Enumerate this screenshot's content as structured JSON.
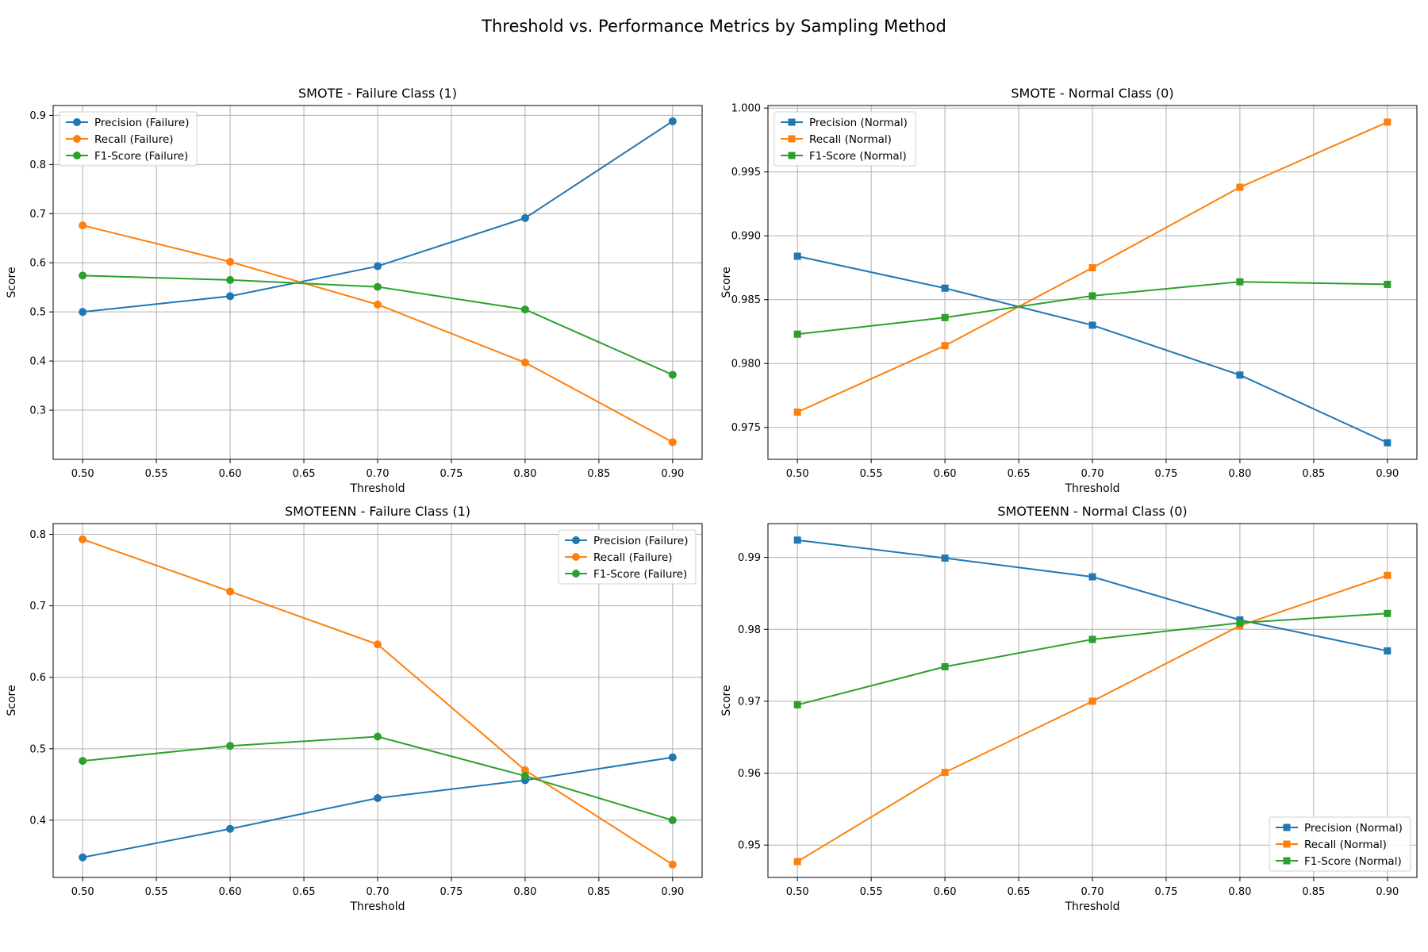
{
  "figure": {
    "title": "Threshold vs. Performance Metrics by Sampling Method"
  },
  "chart_data": [
    {
      "type": "line",
      "title": "SMOTE - Failure Class (1)",
      "xlabel": "Threshold",
      "ylabel": "Score",
      "xlim": [
        0.48,
        0.92
      ],
      "ylim": [
        0.2,
        0.92
      ],
      "xticks": [
        "0.50",
        "0.55",
        "0.60",
        "0.65",
        "0.70",
        "0.75",
        "0.80",
        "0.85",
        "0.90"
      ],
      "yticks": [
        "0.3",
        "0.4",
        "0.5",
        "0.6",
        "0.7",
        "0.8",
        "0.9"
      ],
      "grid": true,
      "legend": "top-left",
      "marker": "circle",
      "x": [
        0.5,
        0.6,
        0.7,
        0.8,
        0.9
      ],
      "series": [
        {
          "name": "Precision (Failure)",
          "color": "#1f77b4",
          "values": [
            0.5,
            0.532,
            0.593,
            0.691,
            0.888
          ]
        },
        {
          "name": "Recall (Failure)",
          "color": "#ff7f0e",
          "values": [
            0.676,
            0.602,
            0.515,
            0.397,
            0.235
          ]
        },
        {
          "name": "F1-Score (Failure)",
          "color": "#2ca02c",
          "values": [
            0.574,
            0.565,
            0.551,
            0.505,
            0.372
          ]
        }
      ]
    },
    {
      "type": "line",
      "title": "SMOTE - Normal Class (0)",
      "xlabel": "Threshold",
      "ylabel": "Score",
      "xlim": [
        0.48,
        0.92
      ],
      "ylim": [
        0.9725,
        1.0002
      ],
      "xticks": [
        "0.50",
        "0.55",
        "0.60",
        "0.65",
        "0.70",
        "0.75",
        "0.80",
        "0.85",
        "0.90"
      ],
      "yticks": [
        "0.975",
        "0.980",
        "0.985",
        "0.990",
        "0.995",
        "1.000"
      ],
      "grid": true,
      "legend": "top-left",
      "marker": "square",
      "x": [
        0.5,
        0.6,
        0.7,
        0.8,
        0.9
      ],
      "series": [
        {
          "name": "Precision (Normal)",
          "color": "#1f77b4",
          "values": [
            0.9884,
            0.9859,
            0.983,
            0.9791,
            0.9738
          ]
        },
        {
          "name": "Recall (Normal)",
          "color": "#ff7f0e",
          "values": [
            0.9762,
            0.9814,
            0.9875,
            0.9938,
            0.9989
          ]
        },
        {
          "name": "F1-Score (Normal)",
          "color": "#2ca02c",
          "values": [
            0.9823,
            0.9836,
            0.9853,
            0.9864,
            0.9862
          ]
        }
      ]
    },
    {
      "type": "line",
      "title": "SMOTEENN - Failure Class (1)",
      "xlabel": "Threshold",
      "ylabel": "Score",
      "xlim": [
        0.48,
        0.92
      ],
      "ylim": [
        0.32,
        0.815
      ],
      "xticks": [
        "0.50",
        "0.55",
        "0.60",
        "0.65",
        "0.70",
        "0.75",
        "0.80",
        "0.85",
        "0.90"
      ],
      "yticks": [
        "0.4",
        "0.5",
        "0.6",
        "0.7",
        "0.8"
      ],
      "grid": true,
      "legend": "top-right",
      "marker": "circle",
      "x": [
        0.5,
        0.6,
        0.7,
        0.8,
        0.9
      ],
      "series": [
        {
          "name": "Precision (Failure)",
          "color": "#1f77b4",
          "values": [
            0.348,
            0.388,
            0.431,
            0.456,
            0.488
          ]
        },
        {
          "name": "Recall (Failure)",
          "color": "#ff7f0e",
          "values": [
            0.793,
            0.72,
            0.646,
            0.47,
            0.338
          ]
        },
        {
          "name": "F1-Score (Failure)",
          "color": "#2ca02c",
          "values": [
            0.483,
            0.504,
            0.517,
            0.462,
            0.4
          ]
        }
      ]
    },
    {
      "type": "line",
      "title": "SMOTEENN - Normal Class (0)",
      "xlabel": "Threshold",
      "ylabel": "Score",
      "xlim": [
        0.48,
        0.92
      ],
      "ylim": [
        0.9455,
        0.9947
      ],
      "xticks": [
        "0.50",
        "0.55",
        "0.60",
        "0.65",
        "0.70",
        "0.75",
        "0.80",
        "0.85",
        "0.90"
      ],
      "yticks": [
        "0.95",
        "0.96",
        "0.97",
        "0.98",
        "0.99"
      ],
      "grid": true,
      "legend": "bottom-right",
      "marker": "square",
      "x": [
        0.5,
        0.6,
        0.7,
        0.8,
        0.9
      ],
      "series": [
        {
          "name": "Precision (Normal)",
          "color": "#1f77b4",
          "values": [
            0.9924,
            0.9899,
            0.9873,
            0.9813,
            0.977
          ]
        },
        {
          "name": "Recall (Normal)",
          "color": "#ff7f0e",
          "values": [
            0.9477,
            0.9601,
            0.97,
            0.9805,
            0.9875
          ]
        },
        {
          "name": "F1-Score (Normal)",
          "color": "#2ca02c",
          "values": [
            0.9695,
            0.9748,
            0.9786,
            0.9809,
            0.9822
          ]
        }
      ]
    }
  ]
}
